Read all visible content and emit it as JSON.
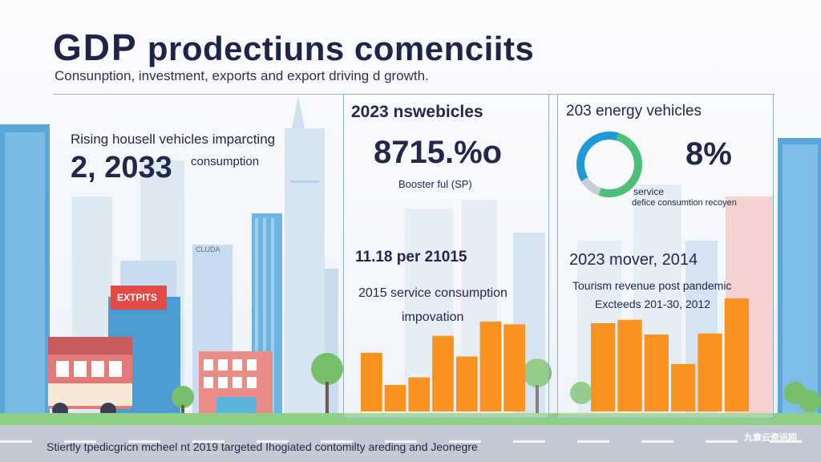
{
  "header": {
    "title_big": "GDP",
    "title_rest": " prodectiuns comenciits",
    "subtitle": "Consunption, investment, exports and export driving d growth."
  },
  "left": {
    "line1": "Rising housell vehicles imparcting",
    "big_value": "2, 2033",
    "line2": "consumption",
    "sign_text": "EXTPITS",
    "tower_sign": "CLUDA"
  },
  "middle": {
    "heading": "2023 nswebicles",
    "big_value": "8715.%o",
    "caption": "Booster ful (SP)",
    "sub_heading": "11.18 per 21015",
    "desc1": "2015 service consumption",
    "desc2": "impovation"
  },
  "right": {
    "heading": "203 energy vehicles",
    "big_value": "8%",
    "donut_label1": "service",
    "donut_label2": "defice consumtion recoyen",
    "sub_heading": "2023 mover, 2014",
    "desc1": "Tourism revenue post pandemic",
    "desc2": "Excteeds 201-30, 2012"
  },
  "chart_data": [
    {
      "type": "bar",
      "values": [
        0.62,
        0.28,
        0.36,
        0.8,
        0.58,
        0.95,
        0.92
      ],
      "color": "#f7931e"
    },
    {
      "type": "bar",
      "values": [
        0.78,
        0.81,
        0.68,
        0.42,
        0.69,
        1.0
      ],
      "color": "#f7931e"
    }
  ],
  "donut": {
    "color_green": "#4cc07a",
    "color_blue": "#1f9ad6",
    "color_gray": "#c9ced6"
  },
  "footer": {
    "text": "Stiertly tpedicgricn mcheel nt 2019 targeted Ihogiated contomilty areding and Jeonegre",
    "watermark": "九章云资讯网"
  }
}
